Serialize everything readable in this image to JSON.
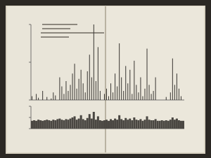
{
  "chart_data": [
    {
      "type": "bar",
      "color": "#3a3733",
      "tick_labels": false,
      "ylim": [
        0,
        100
      ],
      "yticks": [
        0,
        50,
        100
      ],
      "categories": [
        null,
        null,
        null,
        null,
        null,
        null,
        null,
        null,
        null,
        null,
        null,
        null,
        null,
        null,
        null,
        null,
        null,
        null,
        null,
        null,
        null,
        null,
        null,
        null,
        null,
        null,
        null,
        null,
        null,
        null,
        null,
        null,
        null,
        null,
        null,
        null,
        null,
        null,
        null,
        null,
        null,
        null,
        null,
        null,
        null,
        null,
        null,
        null,
        null,
        null,
        null,
        null,
        null,
        null,
        null,
        null,
        null,
        null,
        null,
        null,
        null,
        null,
        null,
        null,
        null,
        null,
        null,
        null,
        null,
        null,
        null,
        null
      ],
      "values": [
        5,
        0,
        8,
        3,
        0,
        12,
        0,
        4,
        0,
        2,
        10,
        6,
        0,
        30,
        18,
        8,
        25,
        12,
        20,
        35,
        48,
        15,
        28,
        40,
        22,
        10,
        38,
        60,
        30,
        100,
        25,
        70,
        12,
        0,
        8,
        15,
        5,
        22,
        10,
        35,
        18,
        75,
        30,
        12,
        45,
        22,
        40,
        8,
        52,
        20,
        10,
        30,
        5,
        15,
        68,
        20,
        8,
        12,
        30,
        0,
        0,
        0,
        0,
        4,
        0,
        10,
        55,
        20,
        35,
        15,
        5,
        0
      ]
    },
    {
      "type": "bar",
      "color": "#4a4742",
      "tick_labels": false,
      "ylim": [
        0,
        40
      ],
      "yticks": [
        0,
        20,
        40
      ],
      "categories": [
        null,
        null,
        null,
        null,
        null,
        null,
        null,
        null,
        null,
        null,
        null,
        null,
        null,
        null,
        null,
        null,
        null,
        null,
        null,
        null,
        null,
        null,
        null,
        null,
        null,
        null,
        null,
        null,
        null,
        null,
        null,
        null,
        null,
        null,
        null,
        null,
        null,
        null,
        null,
        null,
        null,
        null,
        null,
        null,
        null,
        null,
        null,
        null,
        null,
        null,
        null,
        null,
        null,
        null,
        null,
        null,
        null,
        null,
        null,
        null,
        null,
        null,
        null,
        null,
        null,
        null,
        null,
        null,
        null,
        null,
        null,
        null
      ],
      "values": [
        14,
        15,
        14,
        16,
        15,
        14,
        15,
        16,
        15,
        14,
        16,
        15,
        17,
        18,
        16,
        15,
        17,
        16,
        18,
        20,
        22,
        16,
        18,
        24,
        17,
        15,
        19,
        26,
        18,
        30,
        16,
        22,
        15,
        14,
        15,
        16,
        14,
        17,
        15,
        18,
        16,
        24,
        17,
        15,
        19,
        16,
        18,
        15,
        20,
        16,
        15,
        17,
        14,
        16,
        22,
        16,
        15,
        15,
        17,
        14,
        14,
        15,
        14,
        15,
        14,
        16,
        20,
        16,
        18,
        15,
        14,
        14
      ]
    }
  ]
}
